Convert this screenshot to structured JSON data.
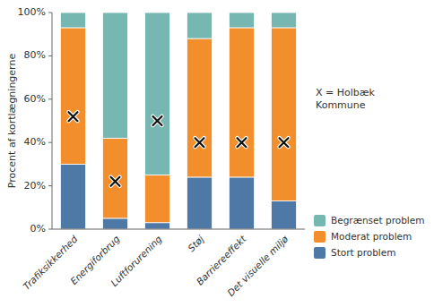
{
  "chart_data": {
    "type": "bar",
    "stacked": true,
    "categories": [
      "Trafiksikkerhed",
      "Energiforbrug",
      "Luftforurening",
      "Støj",
      "Barriereeffekt",
      "Det visuelle miljø"
    ],
    "series": [
      {
        "name": "Stort problem",
        "values": [
          30,
          5,
          3,
          24,
          24,
          13
        ]
      },
      {
        "name": "Moderat problem",
        "values": [
          63,
          37,
          22,
          64,
          69,
          80
        ]
      },
      {
        "name": "Begrænset problem",
        "values": [
          7,
          58,
          75,
          12,
          7,
          7
        ]
      },
      {
        "type": "scatter",
        "marker": "x",
        "values": [
          52,
          22,
          50,
          40,
          40,
          40
        ]
      }
    ],
    "ylabel": "Procent af kortlægningerne",
    "annotation": "X = Holbæk\nKommune",
    "ylim": [
      0,
      100
    ],
    "yticks": [
      {
        "value": 0,
        "label": "0%"
      },
      {
        "value": 20,
        "label": "20%"
      },
      {
        "value": 40,
        "label": "40%"
      },
      {
        "value": 60,
        "label": "60%"
      },
      {
        "value": 80,
        "label": "80%"
      },
      {
        "value": 100,
        "label": "100%"
      }
    ],
    "grid": false,
    "legend": "lower right"
  }
}
